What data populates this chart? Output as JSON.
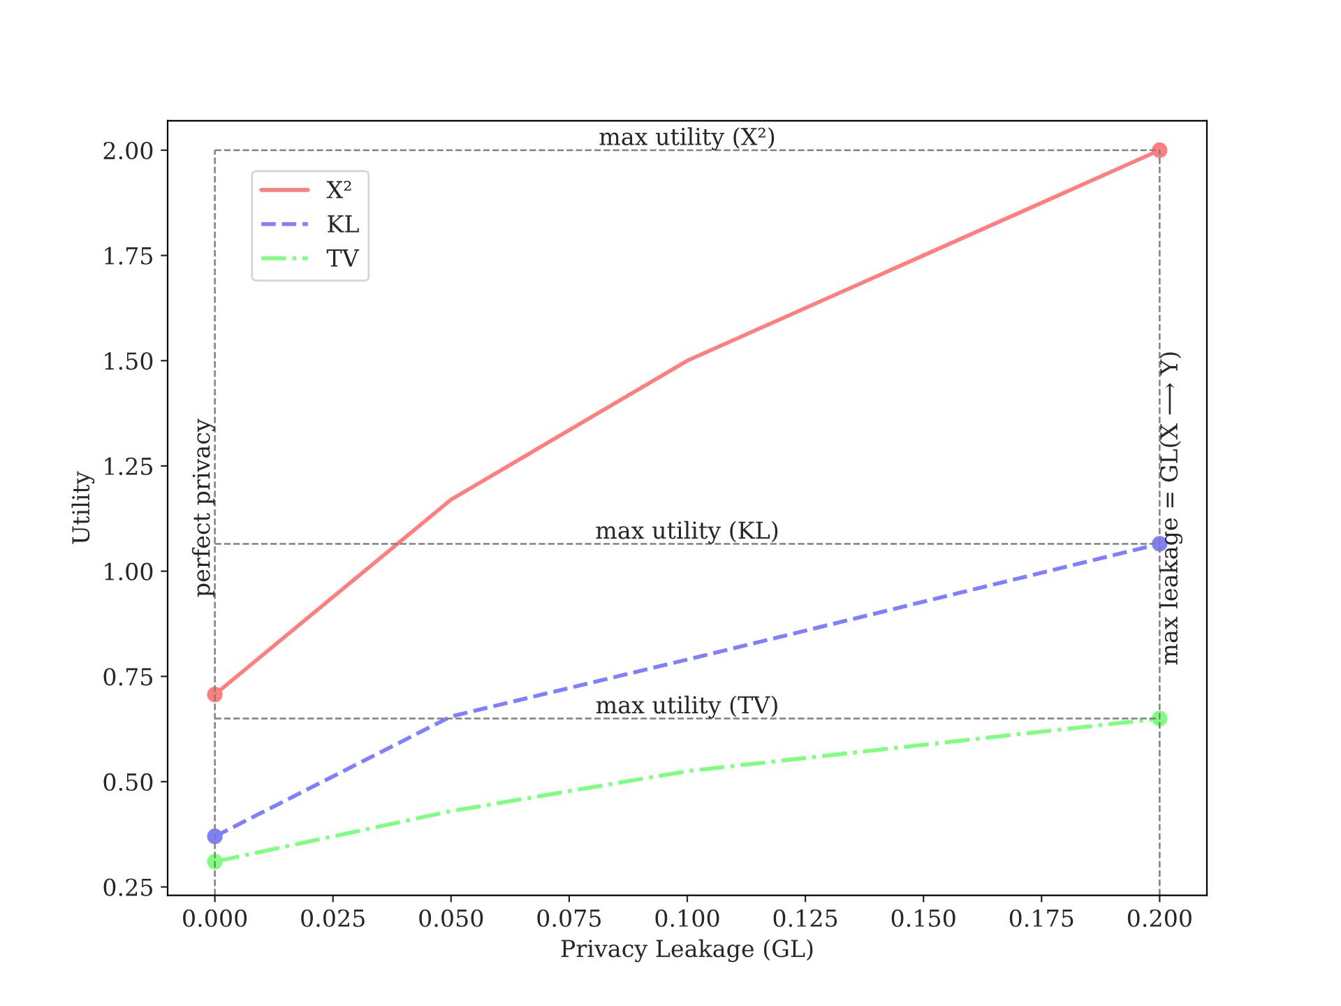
{
  "chart_data": {
    "type": "line",
    "xlabel": "Privacy Leakage (GL)",
    "ylabel": "Utility",
    "x": [
      0,
      0.05,
      0.1,
      0.2
    ],
    "series": [
      {
        "name": "X²",
        "color": "#ff7f7f",
        "line_style": "solid",
        "values": [
          0.707,
          1.17,
          1.5,
          2.0
        ]
      },
      {
        "name": "KL",
        "color": "#7f7fff",
        "line_style": "dashed",
        "values": [
          0.37,
          0.655,
          0.79,
          1.065
        ]
      },
      {
        "name": "TV",
        "color": "#7fff7f",
        "line_style": "dashdot",
        "values": [
          0.31,
          0.43,
          0.525,
          0.65
        ]
      }
    ],
    "marker": "circle",
    "xlim": [
      -0.01,
      0.21
    ],
    "ylim": [
      0.23,
      2.07
    ],
    "xticks": [
      {
        "value": 0,
        "label": "0.000"
      },
      {
        "value": 0.025,
        "label": "0.025"
      },
      {
        "value": 0.05,
        "label": "0.050"
      },
      {
        "value": 0.075,
        "label": "0.075"
      },
      {
        "value": 0.1,
        "label": "0.100"
      },
      {
        "value": 0.125,
        "label": "0.125"
      },
      {
        "value": 0.15,
        "label": "0.150"
      },
      {
        "value": 0.175,
        "label": "0.175"
      },
      {
        "value": 0.2,
        "label": "0.200"
      }
    ],
    "yticks": [
      {
        "value": 0.25,
        "label": "0.25"
      },
      {
        "value": 0.5,
        "label": "0.50"
      },
      {
        "value": 0.75,
        "label": "0.75"
      },
      {
        "value": 1.0,
        "label": "1.00"
      },
      {
        "value": 1.25,
        "label": "1.25"
      },
      {
        "value": 1.5,
        "label": "1.50"
      },
      {
        "value": 1.75,
        "label": "1.75"
      },
      {
        "value": 2.0,
        "label": "2.00"
      }
    ],
    "ref_lines": [
      {
        "axis": "y",
        "value": 2.0,
        "label": "max utility (X²)",
        "color": "#808080",
        "line_style": "dashed"
      },
      {
        "axis": "y",
        "value": 1.065,
        "label": "max utility (KL)",
        "color": "#808080",
        "line_style": "dashed"
      },
      {
        "axis": "y",
        "value": 0.65,
        "label": "max utility (TV)",
        "color": "#808080",
        "line_style": "dashed"
      },
      {
        "axis": "x",
        "value": 0,
        "label": "perfect privacy",
        "color": "#808080",
        "line_style": "dashed"
      },
      {
        "axis": "x",
        "value": 0.2,
        "label": "max leakage = GL(X ⟶ Y)",
        "color": "#808080",
        "line_style": "dashed"
      }
    ],
    "grid": false,
    "legend": "top left"
  }
}
